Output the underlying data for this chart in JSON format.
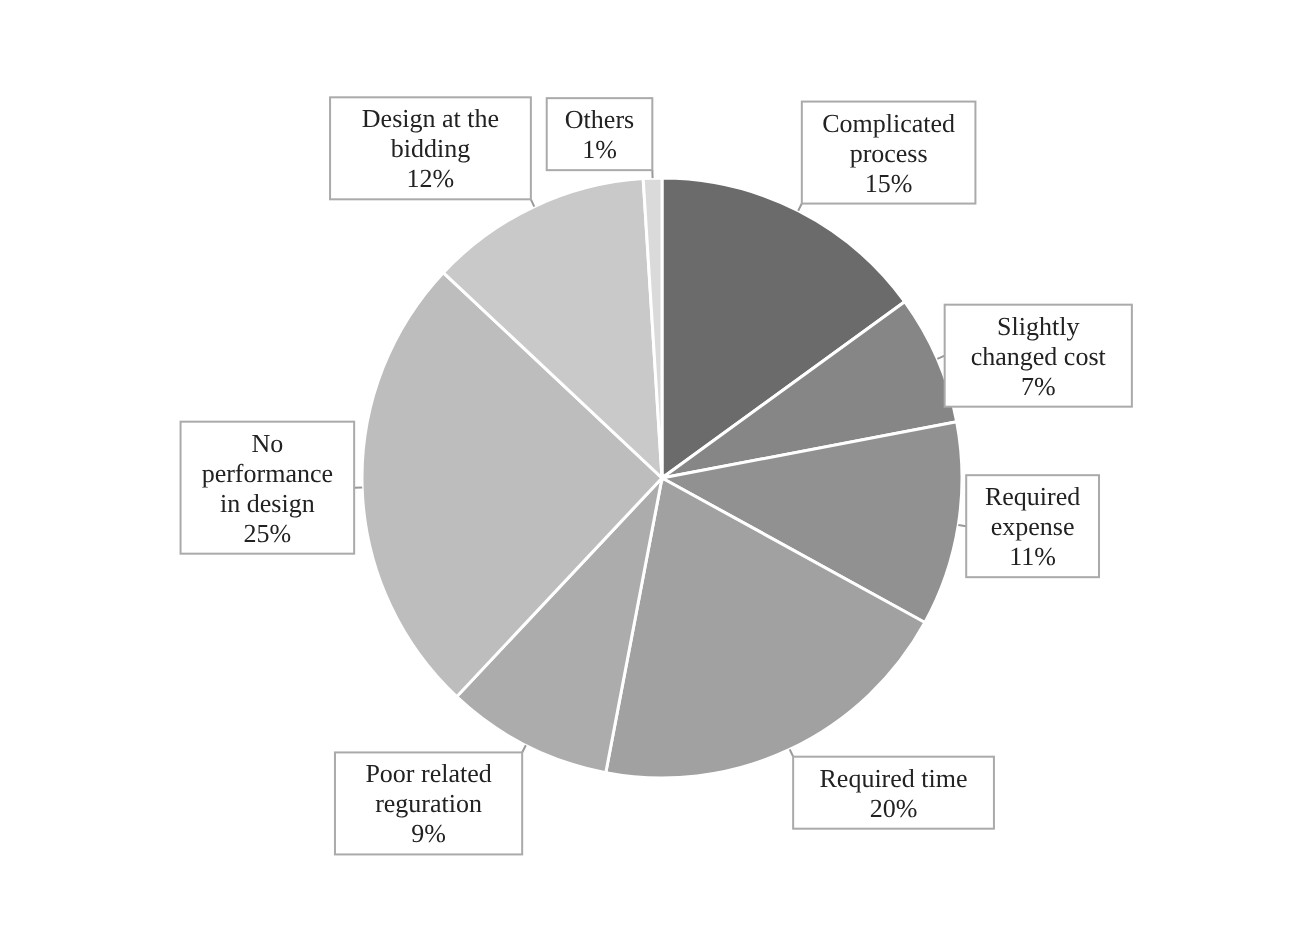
{
  "chart_data": {
    "type": "pie",
    "categories": [
      "Complicated process",
      "Slightly changed cost",
      "Required expense",
      "Required time",
      "Poor related reguration",
      "No performance in design",
      "Design at the bidding",
      "Others"
    ],
    "values": [
      15,
      7,
      11,
      20,
      9,
      25,
      12,
      1
    ],
    "value_labels": [
      "15%",
      "7%",
      "11%",
      "20%",
      "9%",
      "25%",
      "12%",
      "1%"
    ],
    "colors": [
      "#6b6b6b",
      "#868686",
      "#919191",
      "#a1a1a1",
      "#acacac",
      "#bdbdbd",
      "#c9c9c9",
      "#dadada"
    ],
    "legend": false
  }
}
